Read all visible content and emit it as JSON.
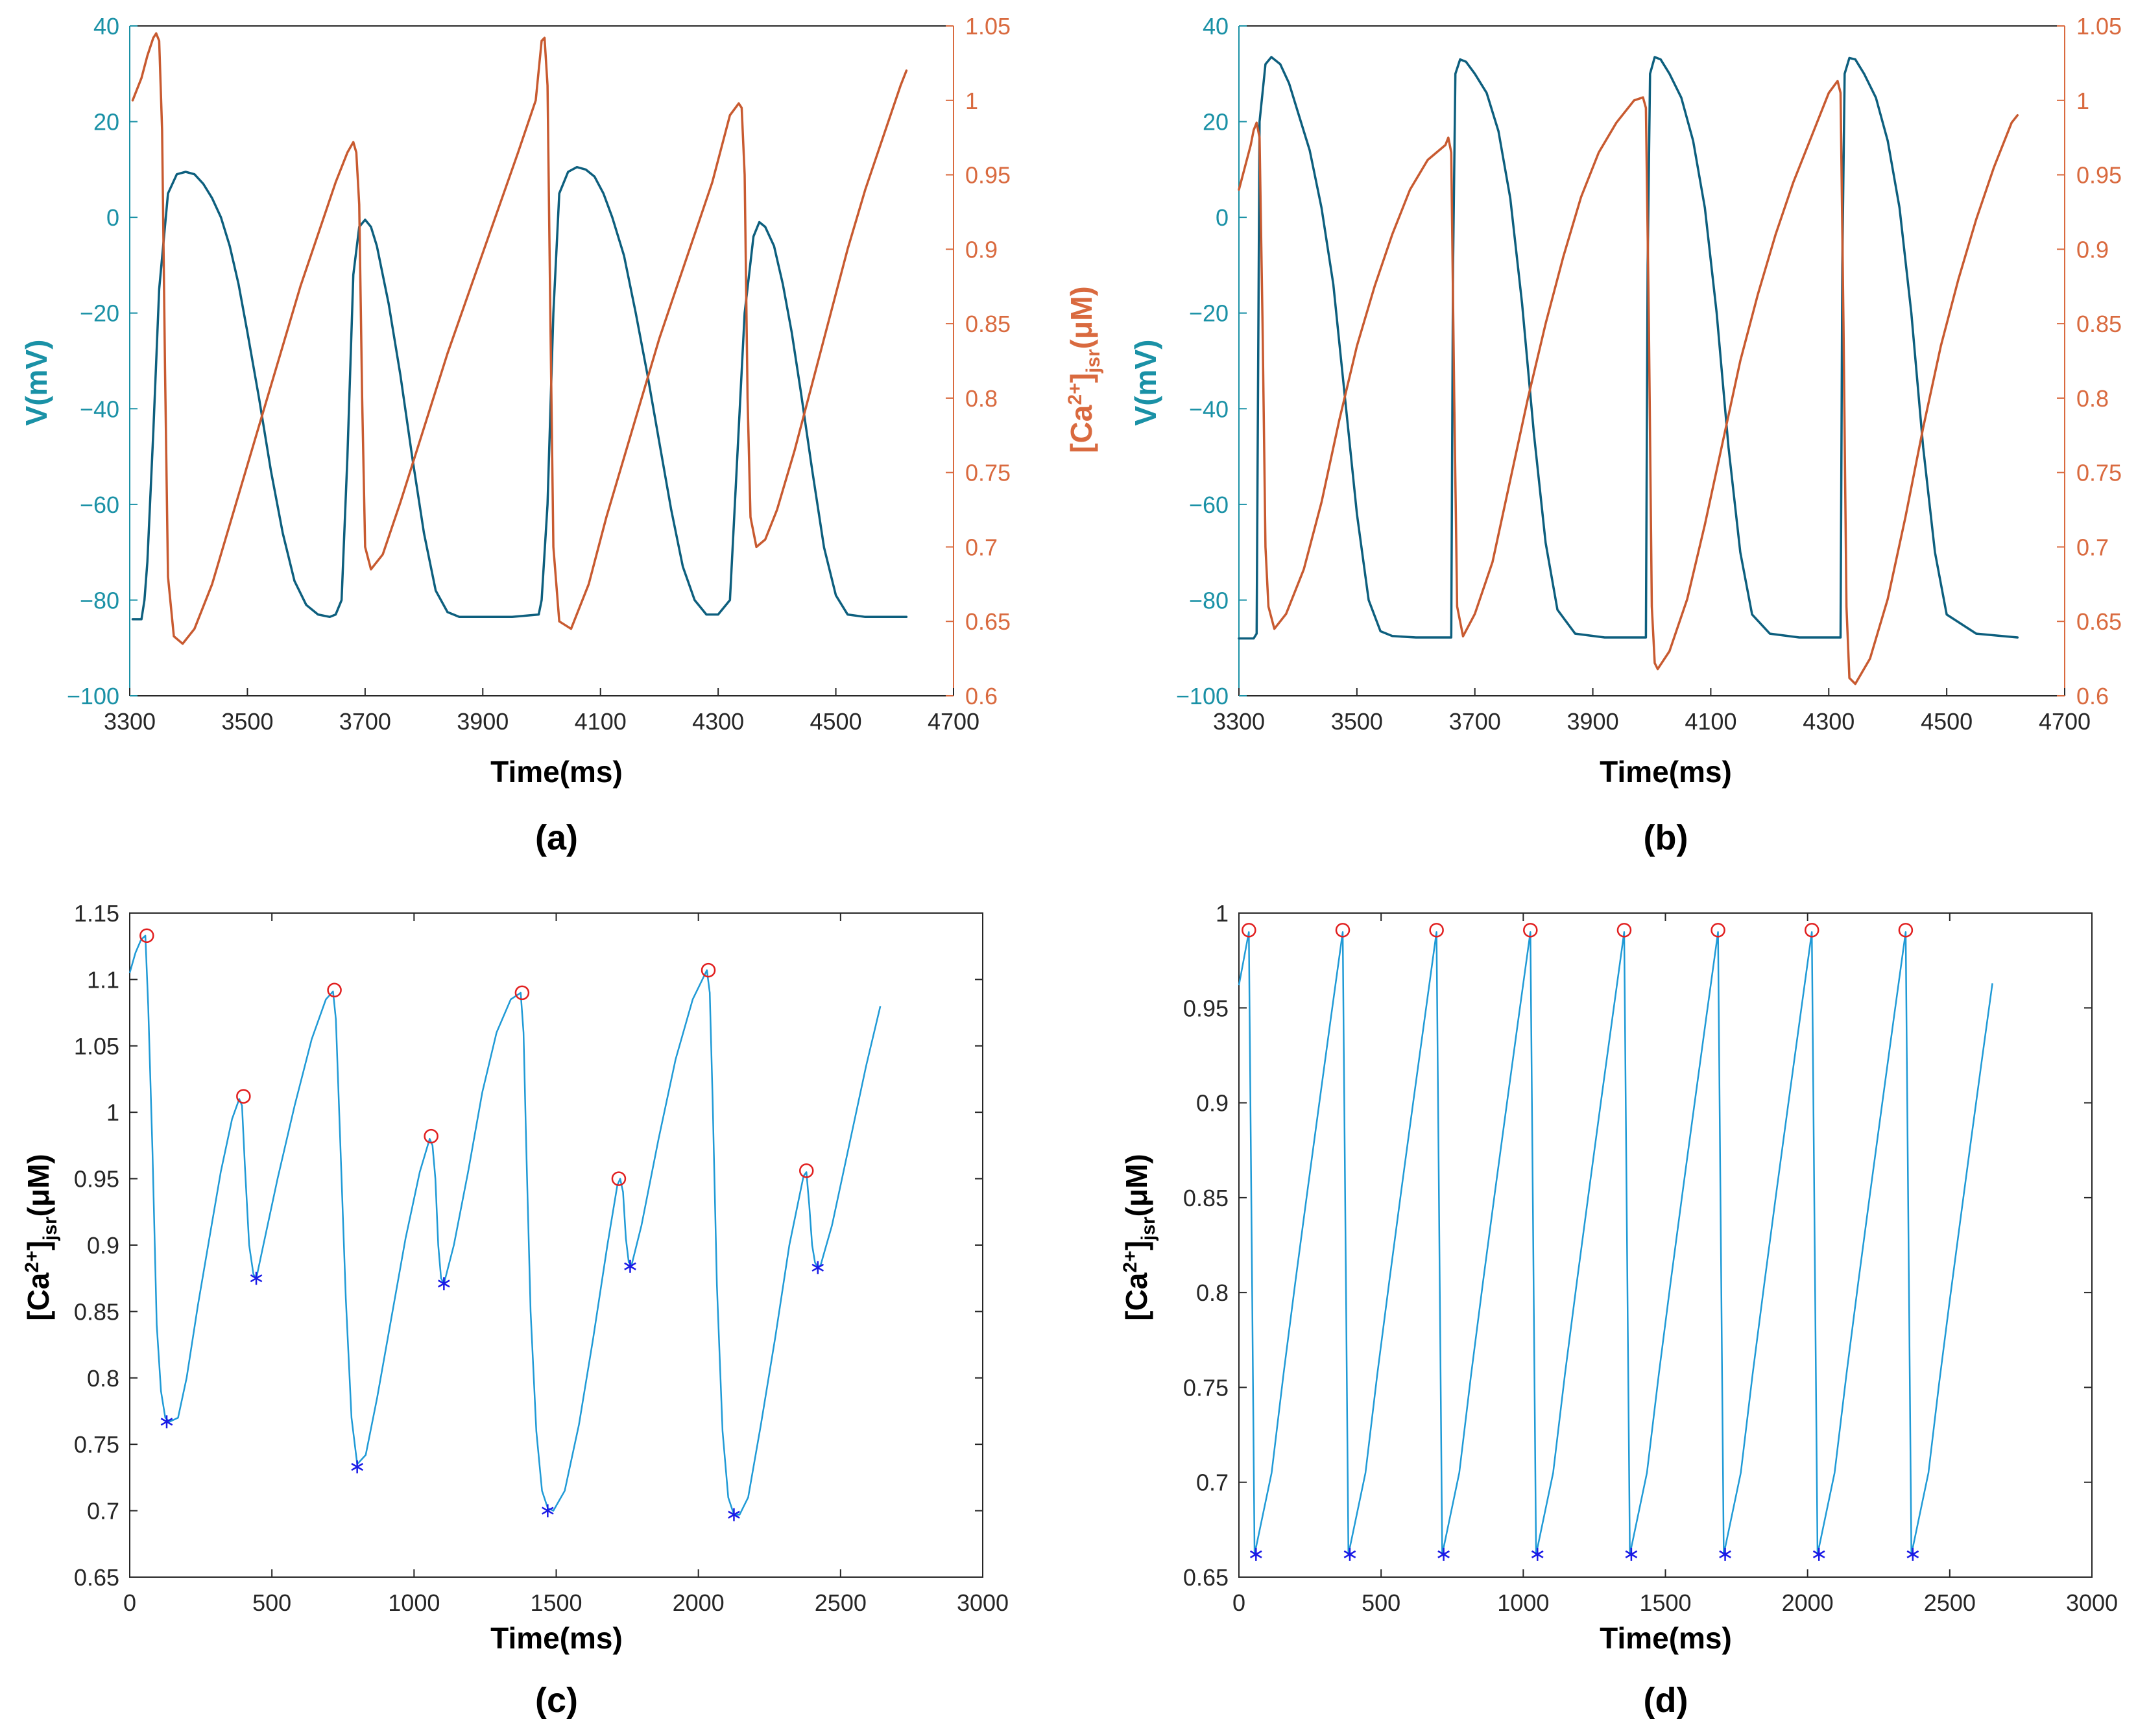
{
  "panels": {
    "a": {
      "label": "(a)"
    },
    "b": {
      "label": "(b)"
    },
    "c": {
      "label": "(c)"
    },
    "d": {
      "label": "(d)"
    }
  },
  "colors": {
    "voltage": "#0d5f7e",
    "voltage_axis": "#1a91a6",
    "calcium": "#d96a3f",
    "calcium_line": "#c85a30",
    "trace": "#1f9ad6",
    "peak_marker": "#e11f1f",
    "trough_marker": "#1a1ae6"
  },
  "chart_data": [
    {
      "id": "a",
      "type": "line",
      "xlabel": "Time(ms)",
      "ylabel_left": "V(mV)",
      "ylabel_right": "[Ca2+]jsr(μM)",
      "xlim": [
        3300,
        4700
      ],
      "xticks": [
        "3300",
        "3500",
        "3700",
        "3900",
        "4100",
        "4300",
        "4500",
        "4700"
      ],
      "ylim_left": [
        -100,
        40
      ],
      "yticks_left": [
        "40",
        "20",
        "0",
        "−20",
        "−40",
        "−60",
        "−80",
        "−100"
      ],
      "ylim_right": [
        0.6,
        1.05
      ],
      "yticks_right": [
        "1.05",
        "1",
        "0.95",
        "0.9",
        "0.85",
        "0.8",
        "0.75",
        "0.7",
        "0.65",
        "0.6"
      ],
      "series": [
        {
          "name": "V",
          "axis": "left",
          "x": [
            3305,
            3320,
            3325,
            3330,
            3340,
            3350,
            3365,
            3380,
            3395,
            3410,
            3425,
            3440,
            3455,
            3470,
            3485,
            3500,
            3520,
            3540,
            3560,
            3580,
            3600,
            3620,
            3640,
            3650,
            3660,
            3670,
            3680,
            3690,
            3700,
            3710,
            3720,
            3740,
            3760,
            3780,
            3800,
            3820,
            3840,
            3860,
            3900,
            3950,
            3995,
            4000,
            4010,
            4020,
            4030,
            4045,
            4060,
            4075,
            4090,
            4105,
            4120,
            4140,
            4160,
            4180,
            4200,
            4220,
            4240,
            4260,
            4280,
            4300,
            4320,
            4330,
            4345,
            4360,
            4370,
            4380,
            4395,
            4410,
            4425,
            4440,
            4460,
            4480,
            4500,
            4520,
            4550,
            4600,
            4620
          ],
          "y": [
            -84,
            -84,
            -80,
            -72,
            -45,
            -15,
            5,
            9,
            9.5,
            9,
            7,
            4,
            0,
            -6,
            -14,
            -24,
            -38,
            -53,
            -66,
            -76,
            -81,
            -83,
            -83.5,
            -83,
            -80,
            -50,
            -12,
            -2,
            -0.5,
            -2,
            -6,
            -18,
            -33,
            -50,
            -66,
            -78,
            -82.5,
            -83.5,
            -83.5,
            -83.5,
            -83,
            -80,
            -60,
            -20,
            5,
            9.5,
            10.5,
            10,
            8.5,
            5,
            0,
            -8,
            -20,
            -33,
            -47,
            -61,
            -73,
            -80,
            -83,
            -83,
            -80,
            -56,
            -20,
            -4,
            -1,
            -2,
            -6,
            -14,
            -24,
            -36,
            -53,
            -69,
            -79,
            -83,
            -83.5,
            -83.5,
            -83.5
          ]
        },
        {
          "name": "[Ca2+]jsr",
          "axis": "right",
          "x": [
            3305,
            3320,
            3330,
            3340,
            3345,
            3350,
            3355,
            3360,
            3365,
            3375,
            3390,
            3410,
            3440,
            3470,
            3500,
            3530,
            3560,
            3590,
            3620,
            3650,
            3670,
            3680,
            3685,
            3690,
            3695,
            3700,
            3710,
            3730,
            3760,
            3800,
            3840,
            3880,
            3920,
            3960,
            3990,
            4000,
            4005,
            4010,
            4015,
            4020,
            4030,
            4050,
            4080,
            4110,
            4140,
            4170,
            4200,
            4230,
            4260,
            4290,
            4320,
            4335,
            4340,
            4345,
            4350,
            4355,
            4365,
            4380,
            4400,
            4430,
            4460,
            4490,
            4520,
            4550,
            4580,
            4610,
            4620
          ],
          "y": [
            1.0,
            1.015,
            1.03,
            1.042,
            1.045,
            1.04,
            0.98,
            0.82,
            0.68,
            0.64,
            0.635,
            0.645,
            0.675,
            0.715,
            0.755,
            0.795,
            0.835,
            0.875,
            0.91,
            0.945,
            0.965,
            0.972,
            0.965,
            0.93,
            0.8,
            0.7,
            0.685,
            0.695,
            0.73,
            0.78,
            0.83,
            0.875,
            0.92,
            0.965,
            1.0,
            1.04,
            1.042,
            1.01,
            0.85,
            0.7,
            0.65,
            0.645,
            0.675,
            0.72,
            0.76,
            0.8,
            0.84,
            0.875,
            0.91,
            0.945,
            0.99,
            0.998,
            0.995,
            0.95,
            0.8,
            0.72,
            0.7,
            0.705,
            0.725,
            0.765,
            0.81,
            0.855,
            0.9,
            0.94,
            0.975,
            1.01,
            1.02
          ]
        }
      ]
    },
    {
      "id": "b",
      "type": "line",
      "xlabel": "Time(ms)",
      "ylabel_left": "V(mV)",
      "ylabel_right": "[Ca2+]jsr(μM)",
      "xlim": [
        3300,
        4700
      ],
      "xticks": [
        "3300",
        "3500",
        "3700",
        "3900",
        "4100",
        "4300",
        "4500",
        "4700"
      ],
      "ylim_left": [
        -100,
        40
      ],
      "yticks_left": [
        "40",
        "20",
        "0",
        "−20",
        "−40",
        "−60",
        "−80",
        "−100"
      ],
      "ylim_right": [
        0.6,
        1.05
      ],
      "yticks_right": [
        "1.05",
        "1",
        "0.95",
        "0.9",
        "0.85",
        "0.8",
        "0.75",
        "0.7",
        "0.65",
        "0.6"
      ],
      "series": [
        {
          "name": "V",
          "axis": "left",
          "x": [
            3300,
            3315,
            3325,
            3330,
            3335,
            3345,
            3355,
            3370,
            3385,
            3400,
            3420,
            3440,
            3460,
            3480,
            3500,
            3520,
            3540,
            3560,
            3600,
            3640,
            3660,
            3663,
            3667,
            3675,
            3685,
            3700,
            3720,
            3740,
            3760,
            3780,
            3800,
            3820,
            3840,
            3870,
            3920,
            3975,
            3990,
            3993,
            3997,
            4005,
            4015,
            4030,
            4050,
            4070,
            4090,
            4110,
            4130,
            4150,
            4170,
            4200,
            4250,
            4305,
            4320,
            4323,
            4327,
            4335,
            4345,
            4360,
            4380,
            4400,
            4420,
            4440,
            4460,
            4480,
            4500,
            4550,
            4620
          ],
          "y": [
            -88,
            -88,
            -88,
            -87,
            20,
            32,
            33.5,
            32,
            28,
            22,
            14,
            2,
            -14,
            -38,
            -62,
            -80,
            -86.5,
            -87.5,
            -87.8,
            -87.8,
            -87.8,
            -10,
            30,
            33,
            32.5,
            30,
            26,
            18,
            4,
            -18,
            -45,
            -68,
            -82,
            -87,
            -87.8,
            -87.8,
            -87.8,
            -10,
            30,
            33.5,
            33,
            30,
            25,
            16,
            2,
            -20,
            -48,
            -70,
            -83,
            -87,
            -87.8,
            -87.8,
            -87.8,
            -10,
            30,
            33.3,
            33,
            30,
            25,
            16,
            2,
            -20,
            -48,
            -70,
            -83,
            -87,
            -87.8
          ]
        },
        {
          "name": "[Ca2+]jsr",
          "axis": "right",
          "x": [
            3300,
            3310,
            3320,
            3325,
            3330,
            3335,
            3340,
            3345,
            3350,
            3360,
            3380,
            3410,
            3440,
            3470,
            3500,
            3530,
            3560,
            3590,
            3620,
            3650,
            3655,
            3660,
            3665,
            3670,
            3680,
            3700,
            3730,
            3760,
            3790,
            3820,
            3850,
            3880,
            3910,
            3940,
            3970,
            3985,
            3990,
            3995,
            4000,
            4005,
            4010,
            4030,
            4060,
            4090,
            4120,
            4150,
            4180,
            4210,
            4240,
            4270,
            4300,
            4315,
            4320,
            4325,
            4330,
            4335,
            4345,
            4370,
            4400,
            4430,
            4460,
            4490,
            4520,
            4550,
            4580,
            4610,
            4620
          ],
          "y": [
            0.94,
            0.955,
            0.97,
            0.98,
            0.985,
            0.975,
            0.85,
            0.7,
            0.66,
            0.645,
            0.655,
            0.685,
            0.73,
            0.785,
            0.835,
            0.875,
            0.91,
            0.94,
            0.96,
            0.97,
            0.975,
            0.965,
            0.8,
            0.66,
            0.64,
            0.655,
            0.69,
            0.745,
            0.8,
            0.85,
            0.895,
            0.935,
            0.965,
            0.985,
            1.0,
            1.002,
            0.995,
            0.85,
            0.66,
            0.622,
            0.618,
            0.63,
            0.665,
            0.715,
            0.77,
            0.825,
            0.87,
            0.91,
            0.945,
            0.975,
            1.005,
            1.013,
            1.005,
            0.85,
            0.66,
            0.612,
            0.608,
            0.625,
            0.665,
            0.72,
            0.78,
            0.835,
            0.88,
            0.92,
            0.955,
            0.985,
            0.99
          ]
        }
      ]
    },
    {
      "id": "c",
      "type": "line",
      "xlabel": "Time(ms)",
      "ylabel": "[Ca2+]jsr(μM)",
      "xlim": [
        0,
        3000
      ],
      "xticks": [
        "0",
        "500",
        "1000",
        "1500",
        "2000",
        "2500",
        "3000"
      ],
      "ylim": [
        0.65,
        1.15
      ],
      "yticks": [
        "1.15",
        "1.1",
        "1.05",
        "1",
        "0.95",
        "0.9",
        "0.85",
        "0.8",
        "0.75",
        "0.7",
        "0.65"
      ],
      "series": [
        {
          "name": "[Ca2+]jsr",
          "x": [
            0,
            20,
            40,
            55,
            65,
            80,
            95,
            110,
            125,
            140,
            170,
            200,
            240,
            280,
            320,
            360,
            385,
            395,
            405,
            420,
            435,
            445,
            470,
            520,
            580,
            640,
            690,
            715,
            725,
            740,
            760,
            780,
            800,
            830,
            870,
            920,
            970,
            1020,
            1055,
            1065,
            1075,
            1085,
            1095,
            1105,
            1140,
            1190,
            1240,
            1290,
            1340,
            1375,
            1385,
            1395,
            1410,
            1430,
            1450,
            1470,
            1490,
            1530,
            1580,
            1630,
            1680,
            1715,
            1725,
            1735,
            1745,
            1755,
            1765,
            1800,
            1860,
            1920,
            1980,
            2030,
            2040,
            2050,
            2065,
            2085,
            2105,
            2125,
            2145,
            2175,
            2220,
            2270,
            2320,
            2370,
            2380,
            2390,
            2400,
            2410,
            2420,
            2430,
            2470,
            2530,
            2590,
            2640
          ],
          "y": [
            1.105,
            1.12,
            1.13,
            1.133,
            1.08,
            0.97,
            0.84,
            0.79,
            0.77,
            0.767,
            0.77,
            0.8,
            0.855,
            0.905,
            0.955,
            0.995,
            1.01,
            1.005,
            0.96,
            0.9,
            0.878,
            0.875,
            0.9,
            0.95,
            1.005,
            1.055,
            1.085,
            1.091,
            1.07,
            0.98,
            0.86,
            0.77,
            0.735,
            0.742,
            0.785,
            0.845,
            0.905,
            0.955,
            0.98,
            0.975,
            0.95,
            0.9,
            0.875,
            0.871,
            0.9,
            0.955,
            1.015,
            1.06,
            1.085,
            1.09,
            1.06,
            0.97,
            0.85,
            0.76,
            0.715,
            0.702,
            0.7,
            0.715,
            0.765,
            0.83,
            0.9,
            0.945,
            0.95,
            0.94,
            0.905,
            0.887,
            0.885,
            0.915,
            0.98,
            1.04,
            1.085,
            1.107,
            1.09,
            1.01,
            0.87,
            0.76,
            0.71,
            0.697,
            0.697,
            0.71,
            0.765,
            0.83,
            0.9,
            0.952,
            0.955,
            0.93,
            0.9,
            0.887,
            0.883,
            0.885,
            0.915,
            0.975,
            1.035,
            1.08
          ]
        }
      ],
      "peaks": {
        "x": [
          60,
          400,
          720,
          1060,
          1380,
          1720,
          2035,
          2380
        ],
        "y": [
          1.133,
          1.012,
          1.092,
          0.982,
          1.09,
          0.95,
          1.107,
          0.956
        ]
      },
      "troughs": {
        "x": [
          130,
          445,
          800,
          1105,
          1470,
          1760,
          2125,
          2420
        ],
        "y": [
          0.767,
          0.875,
          0.733,
          0.871,
          0.7,
          0.884,
          0.697,
          0.883
        ]
      }
    },
    {
      "id": "d",
      "type": "line",
      "xlabel": "Time(ms)",
      "ylabel": "[Ca2+]jsr(μM)",
      "xlim": [
        0,
        3000
      ],
      "xticks": [
        "0",
        "500",
        "1000",
        "1500",
        "2000",
        "2500",
        "3000"
      ],
      "ylim": [
        0.65,
        1.0
      ],
      "yticks": [
        "1",
        "0.95",
        "0.9",
        "0.85",
        "0.8",
        "0.75",
        "0.7",
        "0.65"
      ],
      "series": [
        {
          "name": "[Ca2+]jsr",
          "cycle_period": 330,
          "cycle_count": 8,
          "first_peak_x": 35,
          "end_x": 2650,
          "start_y": 0.962,
          "peak_y": 0.99,
          "trough_y": 0.662,
          "trough_offset_ms": 20,
          "shoulder_y": 0.705,
          "shoulder_offset_ms": 60,
          "end_y": 0.963
        }
      ],
      "peaks": {
        "x": [
          35,
          365,
          695,
          1025,
          1355,
          1685,
          2015,
          2345
        ],
        "y": [
          0.991,
          0.991,
          0.991,
          0.991,
          0.991,
          0.991,
          0.991,
          0.991
        ]
      },
      "troughs": {
        "x": [
          60,
          390,
          720,
          1050,
          1380,
          1710,
          2040,
          2370
        ],
        "y": [
          0.662,
          0.662,
          0.662,
          0.662,
          0.662,
          0.662,
          0.662,
          0.662
        ]
      }
    }
  ]
}
